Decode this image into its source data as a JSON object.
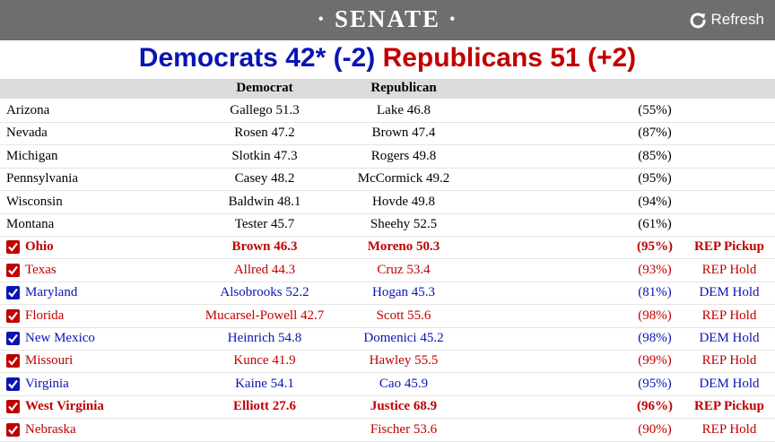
{
  "header": {
    "title": "· SENATE ·",
    "refresh": "Refresh"
  },
  "summary": {
    "democrats": "Democrats 42* (-2)",
    "republicans": "Republicans 51 (+2)"
  },
  "table": {
    "columns": [
      "Democrat",
      "Republican"
    ],
    "rows": [
      {
        "state": "Arizona",
        "dem": "Gallego 51.3",
        "rep": "Lake 46.8",
        "pct": "(55%)"
      },
      {
        "state": "Nevada",
        "dem": "Rosen 47.2",
        "rep": "Brown 47.4",
        "pct": "(87%)"
      },
      {
        "state": "Michigan",
        "dem": "Slotkin 47.3",
        "rep": "Rogers 49.8",
        "pct": "(85%)"
      },
      {
        "state": "Pennsylvania",
        "dem": "Casey 48.2",
        "rep": "McCormick 49.2",
        "pct": "(95%)"
      },
      {
        "state": "Wisconsin",
        "dem": "Baldwin 48.1",
        "rep": "Hovde 49.8",
        "pct": "(94%)"
      },
      {
        "state": "Montana",
        "dem": "Tester 45.7",
        "rep": "Sheehy 52.5",
        "pct": "(61%)"
      },
      {
        "state": "Ohio",
        "dem": "Brown 46.3",
        "rep": "Moreno 50.3",
        "pct": "(95%)",
        "status": "REP Pickup",
        "party": "rep",
        "bold": true
      },
      {
        "state": "Texas",
        "dem": "Allred 44.3",
        "rep": "Cruz 53.4",
        "pct": "(93%)",
        "status": "REP Hold",
        "party": "rep"
      },
      {
        "state": "Maryland",
        "dem": "Alsobrooks 52.2",
        "rep": "Hogan 45.3",
        "pct": "(81%)",
        "status": "DEM Hold",
        "party": "dem"
      },
      {
        "state": "Florida",
        "dem": "Mucarsel-Powell 42.7",
        "rep": "Scott 55.6",
        "pct": "(98%)",
        "status": "REP Hold",
        "party": "rep"
      },
      {
        "state": "New Mexico",
        "dem": "Heinrich 54.8",
        "rep": "Domenici 45.2",
        "pct": "(98%)",
        "status": "DEM Hold",
        "party": "dem"
      },
      {
        "state": "Missouri",
        "dem": "Kunce 41.9",
        "rep": "Hawley 55.5",
        "pct": "(99%)",
        "status": "REP Hold",
        "party": "rep"
      },
      {
        "state": "Virginia",
        "dem": "Kaine 54.1",
        "rep": "Cao 45.9",
        "pct": "(95%)",
        "status": "DEM Hold",
        "party": "dem"
      },
      {
        "state": "West Virginia",
        "dem": "Elliott 27.6",
        "rep": "Justice 68.9",
        "pct": "(96%)",
        "status": "REP Pickup",
        "party": "rep",
        "bold": true
      },
      {
        "state": "Nebraska",
        "rep": "Fischer 53.6",
        "pct": "(90%)",
        "status": "REP Hold",
        "party": "rep"
      }
    ]
  }
}
